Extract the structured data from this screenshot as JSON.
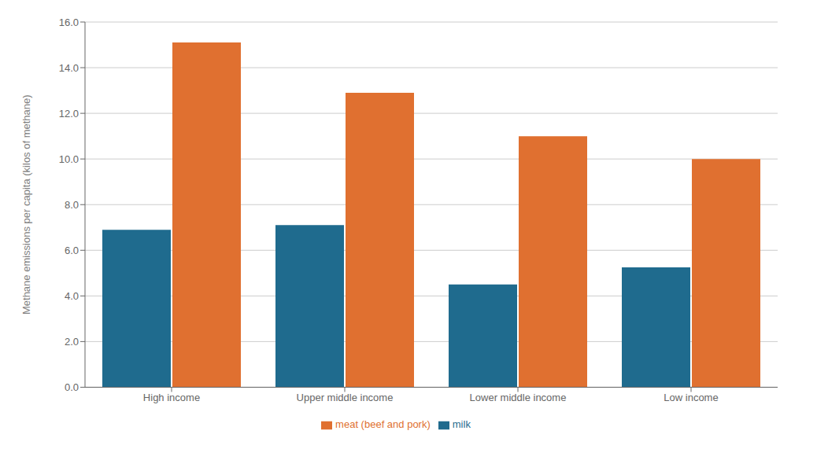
{
  "chart_data": {
    "type": "bar",
    "categories": [
      "High income",
      "Upper middle income",
      "Lower middle income",
      "Low income"
    ],
    "series": [
      {
        "name": "milk",
        "color": "#1f6b8e",
        "values": [
          6.9,
          7.1,
          4.5,
          5.25
        ]
      },
      {
        "name": "meat (beef and pork)",
        "color": "#e07030",
        "values": [
          15.1,
          12.9,
          11.0,
          10.0
        ]
      }
    ],
    "ylabel": "Methane emissions per capita (kilos of methane)",
    "ylim": [
      0,
      16.0
    ],
    "yticks": [
      {
        "value": 0.0,
        "label": "0.0"
      },
      {
        "value": 2.0,
        "label": "2.0"
      },
      {
        "value": 4.0,
        "label": "4.0"
      },
      {
        "value": 6.0,
        "label": "6.0"
      },
      {
        "value": 8.0,
        "label": "8.0"
      },
      {
        "value": 10.0,
        "label": "10.0"
      },
      {
        "value": 12.0,
        "label": "12.0"
      },
      {
        "value": 14.0,
        "label": "14.0"
      },
      {
        "value": 16.0,
        "label": "16.0"
      }
    ],
    "grid": true,
    "legend": "bottom"
  }
}
